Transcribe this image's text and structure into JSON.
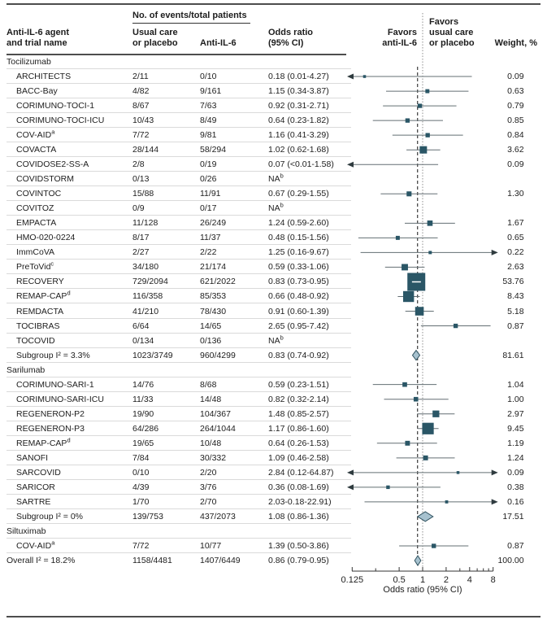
{
  "figure": {
    "header": {
      "events_group": "No. of events/total patients",
      "trial_line1": "Anti-IL-6 agent",
      "trial_line2": "and trial name",
      "usual_line1": "Usual care",
      "usual_line2": "or placebo",
      "anti": "Anti-IL-6",
      "or_line1": "Odds ratio",
      "or_line2": "(95% CI)",
      "favors_left_line1": "Favors",
      "favors_left_line2": "anti-IL-6",
      "favors_right_line1": "Favors",
      "favors_right_line2": "usual care",
      "favors_right_line3": "or placebo",
      "weight": "Weight, %"
    },
    "colors": {
      "marker": "#2a5666",
      "diamond_fill": "#a7c2cf",
      "diamond_stroke": "#30525f",
      "ci_line": "#636f73",
      "hairline": "#dadada",
      "rule": "#4d4d4d",
      "ref_dotted": "#8f8f8f",
      "overall_dashed": "#3a3a3a"
    }
  },
  "chart_data": {
    "type": "forest",
    "x_scale": "log2",
    "x_range": [
      0.125,
      8
    ],
    "reference_line": 1,
    "overall_line": 0.86,
    "axis": {
      "label": "Odds ratio (95% CI)",
      "major_ticks": [
        0.125,
        0.5,
        1,
        2,
        4,
        8
      ],
      "tick_labels": [
        "0.125",
        "0.5",
        "1",
        "2",
        "4",
        "8"
      ],
      "minor_ticks": [
        0.25,
        3,
        5,
        6,
        7
      ]
    },
    "rows": [
      {
        "type": "group",
        "name": "Tocilizumab"
      },
      {
        "type": "trial",
        "name": "ARCHITECTS",
        "usual": "2/11",
        "anti": "0/10",
        "or_text": "0.18 (0.01-4.27)",
        "or": 0.18,
        "ci": [
          0.01,
          4.27
        ],
        "weight": "0.09",
        "arrow_left": true
      },
      {
        "type": "trial",
        "name": "BACC-Bay",
        "usual": "4/82",
        "anti": "9/161",
        "or_text": "1.15 (0.34-3.87)",
        "or": 1.15,
        "ci": [
          0.34,
          3.87
        ],
        "weight": "0.63"
      },
      {
        "type": "trial",
        "name": "CORIMUNO-TOCI-1",
        "usual": "8/67",
        "anti": "7/63",
        "or_text": "0.92 (0.31-2.71)",
        "or": 0.92,
        "ci": [
          0.31,
          2.71
        ],
        "weight": "0.79"
      },
      {
        "type": "trial",
        "name": "CORIMUNO-TOCI-ICU",
        "usual": "10/43",
        "anti": "8/49",
        "or_text": "0.64 (0.23-1.82)",
        "or": 0.64,
        "ci": [
          0.23,
          1.82
        ],
        "weight": "0.85"
      },
      {
        "type": "trial",
        "name": "COV-AID",
        "sup": "a",
        "usual": "7/72",
        "anti": "9/81",
        "or_text": "1.16 (0.41-3.29)",
        "or": 1.16,
        "ci": [
          0.41,
          3.29
        ],
        "weight": "0.84"
      },
      {
        "type": "trial",
        "name": "COVACTA",
        "usual": "28/144",
        "anti": "58/294",
        "or_text": "1.02 (0.62-1.68)",
        "or": 1.02,
        "ci": [
          0.62,
          1.68
        ],
        "weight": "3.62"
      },
      {
        "type": "trial",
        "name": "COVIDOSE2-SS-A",
        "usual": "2/8",
        "anti": "0/19",
        "or_text": "0.07 (<0.01-1.58)",
        "or": 0.07,
        "ci": [
          0.005,
          1.58
        ],
        "weight": "0.09",
        "arrow_left": true
      },
      {
        "type": "trial",
        "name": "COVIDSTORM",
        "usual": "0/13",
        "anti": "0/26",
        "or_text": "NA",
        "or_sup": "b"
      },
      {
        "type": "trial",
        "name": "COVINTOC",
        "usual": "15/88",
        "anti": "11/91",
        "or_text": "0.67 (0.29-1.55)",
        "or": 0.67,
        "ci": [
          0.29,
          1.55
        ],
        "weight": "1.30"
      },
      {
        "type": "trial",
        "name": "COVITOZ",
        "usual": "0/9",
        "anti": "0/17",
        "or_text": "NA",
        "or_sup": "b"
      },
      {
        "type": "trial",
        "name": "EMPACTA",
        "usual": "11/128",
        "anti": "26/249",
        "or_text": "1.24 (0.59-2.60)",
        "or": 1.24,
        "ci": [
          0.59,
          2.6
        ],
        "weight": "1.67"
      },
      {
        "type": "trial",
        "name": "HMO-020-0224",
        "usual": "8/17",
        "anti": "11/37",
        "or_text": "0.48 (0.15-1.56)",
        "or": 0.48,
        "ci": [
          0.15,
          1.56
        ],
        "weight": "0.65"
      },
      {
        "type": "trial",
        "name": "ImmCoVA",
        "usual": "2/27",
        "anti": "2/22",
        "or_text": "1.25 (0.16-9.67)",
        "or": 1.25,
        "ci": [
          0.16,
          9.67
        ],
        "weight": "0.22",
        "arrow_right": true
      },
      {
        "type": "trial",
        "name": "PreToVid",
        "sup": "c",
        "usual": "34/180",
        "anti": "21/174",
        "or_text": "0.59 (0.33-1.06)",
        "or": 0.59,
        "ci": [
          0.33,
          1.06
        ],
        "weight": "2.63"
      },
      {
        "type": "trial",
        "name": "RECOVERY",
        "usual": "729/2094",
        "anti": "621/2022",
        "or_text": "0.83 (0.73-0.95)",
        "or": 0.83,
        "ci": [
          0.73,
          0.95
        ],
        "weight": "53.76"
      },
      {
        "type": "trial",
        "name": "REMAP-CAP",
        "sup": "d",
        "usual": "116/358",
        "anti": "85/353",
        "or_text": "0.66 (0.48-0.92)",
        "or": 0.66,
        "ci": [
          0.48,
          0.92
        ],
        "weight": "8.43"
      },
      {
        "type": "trial",
        "name": "REMDACTA",
        "usual": "41/210",
        "anti": "78/430",
        "or_text": "0.91 (0.60-1.39)",
        "or": 0.91,
        "ci": [
          0.6,
          1.39
        ],
        "weight": "5.18"
      },
      {
        "type": "trial",
        "name": "TOCIBRAS",
        "usual": "6/64",
        "anti": "14/65",
        "or_text": "2.65 (0.95-7.42)",
        "or": 2.65,
        "ci": [
          0.95,
          7.42
        ],
        "weight": "0.87"
      },
      {
        "type": "trial",
        "name": "TOCOVID",
        "usual": "0/134",
        "anti": "0/136",
        "or_text": "NA",
        "or_sup": "b"
      },
      {
        "type": "summary",
        "name": "Subgroup I² = 3.3%",
        "usual": "1023/3749",
        "anti": "960/4299",
        "or_text": "0.83 (0.74-0.92)",
        "or": 0.83,
        "ci": [
          0.74,
          0.92
        ],
        "weight": "81.61",
        "diamond": true
      },
      {
        "type": "group",
        "name": "Sarilumab"
      },
      {
        "type": "trial",
        "name": "CORIMUNO-SARI-1",
        "usual": "14/76",
        "anti": "8/68",
        "or_text": "0.59 (0.23-1.51)",
        "or": 0.59,
        "ci": [
          0.23,
          1.51
        ],
        "weight": "1.04"
      },
      {
        "type": "trial",
        "name": "CORIMUNO-SARI-ICU",
        "usual": "11/33",
        "anti": "14/48",
        "or_text": "0.82 (0.32-2.14)",
        "or": 0.82,
        "ci": [
          0.32,
          2.14
        ],
        "weight": "1.00"
      },
      {
        "type": "trial",
        "name": "REGENERON-P2",
        "usual": "19/90",
        "anti": "104/367",
        "or_text": "1.48 (0.85-2.57)",
        "or": 1.48,
        "ci": [
          0.85,
          2.57
        ],
        "weight": "2.97"
      },
      {
        "type": "trial",
        "name": "REGENERON-P3",
        "usual": "64/286",
        "anti": "264/1044",
        "or_text": "1.17 (0.86-1.60)",
        "or": 1.17,
        "ci": [
          0.86,
          1.6
        ],
        "weight": "9.45"
      },
      {
        "type": "trial",
        "name": "REMAP-CAP",
        "sup": "d",
        "usual": "19/65",
        "anti": "10/48",
        "or_text": "0.64 (0.26-1.53)",
        "or": 0.64,
        "ci": [
          0.26,
          1.53
        ],
        "weight": "1.19"
      },
      {
        "type": "trial",
        "name": "SANOFI",
        "usual": "7/84",
        "anti": "30/332",
        "or_text": "1.09 (0.46-2.58)",
        "or": 1.09,
        "ci": [
          0.46,
          2.58
        ],
        "weight": "1.24"
      },
      {
        "type": "trial",
        "name": "SARCOVID",
        "usual": "0/10",
        "anti": "2/20",
        "or_text": "2.84 (0.12-64.87)",
        "or": 2.84,
        "ci": [
          0.12,
          64.87
        ],
        "weight": "0.09",
        "arrow_left": true,
        "arrow_right": true
      },
      {
        "type": "trial",
        "name": "SARICOR",
        "usual": "4/39",
        "anti": "3/76",
        "or_text": "0.36 (0.08-1.69)",
        "or": 0.36,
        "ci": [
          0.08,
          1.69
        ],
        "weight": "0.38",
        "arrow_left": true
      },
      {
        "type": "trial",
        "name": "SARTRE",
        "usual": "1/70",
        "anti": "2/70",
        "or_text": "2.03-0.18-22.91)",
        "or": 2.03,
        "ci": [
          0.18,
          22.91
        ],
        "weight": "0.16",
        "arrow_right": true
      },
      {
        "type": "summary",
        "name": "Subgroup I² = 0%",
        "usual": "139/753",
        "anti": "437/2073",
        "or_text": "1.08 (0.86-1.36)",
        "or": 1.08,
        "ci": [
          0.86,
          1.36
        ],
        "weight": "17.51",
        "diamond": true
      },
      {
        "type": "group",
        "name": "Siltuximab"
      },
      {
        "type": "trial",
        "name": "COV-AID",
        "sup": "a",
        "usual": "7/72",
        "anti": "10/77",
        "or_text": "1.39 (0.50-3.86)",
        "or": 1.39,
        "ci": [
          0.5,
          3.86
        ],
        "weight": "0.87"
      },
      {
        "type": "overall",
        "name": "Overall I² = 18.2%",
        "usual": "1158/4481",
        "anti": "1407/6449",
        "or_text": "0.86 (0.79-0.95)",
        "or": 0.86,
        "ci": [
          0.79,
          0.95
        ],
        "weight": "100.00",
        "diamond": true
      }
    ]
  }
}
